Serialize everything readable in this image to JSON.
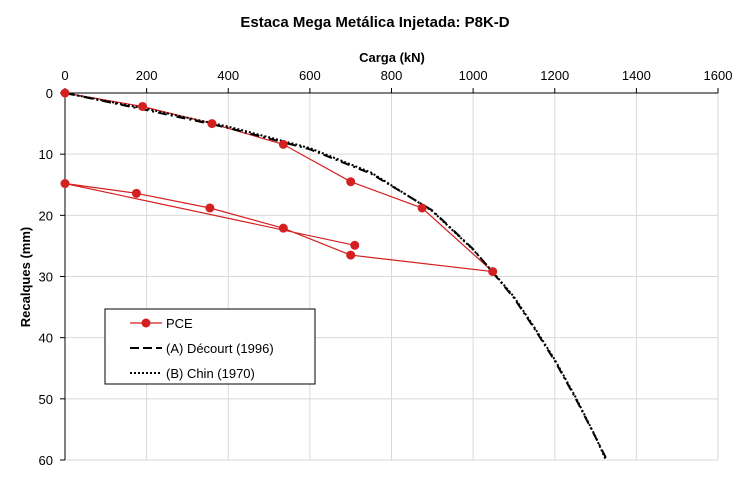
{
  "chart_data": {
    "type": "scatter",
    "title": "Estaca Mega Metálica Injetada: P8K-D",
    "xlabel": "Carga (kN)",
    "ylabel": "Recalques (mm)",
    "xlim": [
      0,
      1600
    ],
    "ylim": [
      0,
      60
    ],
    "x_ticks": [
      "0",
      "200",
      "400",
      "600",
      "800",
      "1000",
      "1200",
      "1400",
      "1600"
    ],
    "y_ticks": [
      "0",
      "10",
      "20",
      "30",
      "40",
      "50",
      "60"
    ],
    "x_axis_position": "top",
    "y_axis_inverted": true,
    "grid": true,
    "legend_position": "bottom-left",
    "series": [
      {
        "name": "PCE",
        "style": "line-markers",
        "color": "#d42020",
        "x": [
          0,
          190,
          360,
          535,
          700,
          875,
          1048,
          700,
          535,
          355,
          175,
          0,
          710
        ],
        "y": [
          0,
          2.2,
          5.0,
          8.4,
          14.5,
          18.8,
          29.2,
          26.5,
          22.1,
          18.8,
          16.4,
          14.8,
          24.9
        ]
      },
      {
        "name": "(A) Décourt (1996)",
        "style": "dashed",
        "color": "#000000",
        "x": [
          0,
          200,
          400,
          600,
          750,
          900,
          1000,
          1050,
          1100,
          1150,
          1200,
          1250,
          1300,
          1328
        ],
        "y": [
          0,
          2.8,
          5.7,
          9.2,
          13.2,
          19.2,
          25.5,
          29.5,
          33.5,
          38.5,
          43.8,
          49.8,
          56.3,
          60
        ]
      },
      {
        "name": "(B) Chin (1970)",
        "style": "dotted",
        "color": "#000000",
        "x": [
          0,
          200,
          400,
          600,
          750,
          900,
          1000,
          1050,
          1100,
          1150,
          1200,
          1250,
          1300,
          1325
        ],
        "y": [
          0,
          2.6,
          5.5,
          9.0,
          13.0,
          19.3,
          25.6,
          29.4,
          33.3,
          38.3,
          43.6,
          49.6,
          56.2,
          60
        ]
      }
    ]
  }
}
